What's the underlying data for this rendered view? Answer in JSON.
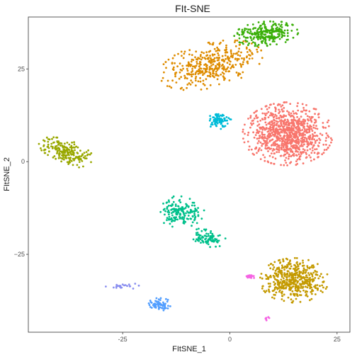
{
  "chart_data": {
    "type": "scatter",
    "title": "FIt-SNE",
    "xlabel": "FItSNE_1",
    "ylabel": "FItSNE_2",
    "xlim": [
      -47,
      28
    ],
    "ylim": [
      -46,
      39
    ],
    "x_ticks": [
      -25,
      0,
      25
    ],
    "x_tick_labels": [
      "-25",
      "0",
      "25"
    ],
    "y_ticks": [
      -25,
      0,
      25
    ],
    "y_tick_labels": [
      "−25",
      "0",
      "25"
    ],
    "grid": false,
    "legend": "none",
    "colors": {
      "red": "#F8766D",
      "orange": "#DE8C00",
      "green": "#3BAF0A",
      "olive": "#99A800",
      "teal": "#00C08B",
      "cyan": "#00BCD8",
      "blue": "#529EFF",
      "purple": "#8A8FF0",
      "pink": "#F564E3",
      "gold": "#C49A00"
    },
    "clusters": [
      {
        "color": "red",
        "center": [
          13.5,
          7.5
        ],
        "spread": [
          10.5,
          8.5
        ],
        "n": 900
      },
      {
        "color": "orange",
        "center": [
          -4.5,
          26
        ],
        "spread": [
          12.5,
          6
        ],
        "n": 380,
        "angle": 0.28
      },
      {
        "color": "green",
        "center": [
          8.5,
          34.5
        ],
        "spread": [
          7.5,
          3.3
        ],
        "n": 260,
        "angle": 0.1
      },
      {
        "color": "olive",
        "center": [
          -38,
          2.5
        ],
        "spread": [
          7,
          3.2
        ],
        "n": 200,
        "angle": -0.42
      },
      {
        "color": "teal",
        "center": [
          -11.5,
          -13.5
        ],
        "spread": [
          5.5,
          4.3
        ],
        "n": 170
      },
      {
        "color": "teal",
        "center": [
          -5,
          -20.5
        ],
        "spread": [
          4.2,
          2.5
        ],
        "n": 90,
        "angle": -0.2
      },
      {
        "color": "cyan",
        "center": [
          -2.5,
          11
        ],
        "spread": [
          2.8,
          2.2
        ],
        "n": 90
      },
      {
        "color": "gold",
        "center": [
          15,
          -32
        ],
        "spread": [
          8,
          6
        ],
        "n": 470
      },
      {
        "color": "blue",
        "center": [
          -16.5,
          -38.5
        ],
        "spread": [
          3,
          1.7
        ],
        "n": 70
      },
      {
        "color": "purple",
        "center": [
          -24.5,
          -33.5
        ],
        "spread": [
          4.5,
          1
        ],
        "n": 22
      },
      {
        "color": "pink",
        "center": [
          4.8,
          -31
        ],
        "spread": [
          1.2,
          0.6
        ],
        "n": 22
      },
      {
        "color": "pink",
        "center": [
          8.5,
          -42.3
        ],
        "spread": [
          0.7,
          0.5
        ],
        "n": 6
      }
    ]
  }
}
